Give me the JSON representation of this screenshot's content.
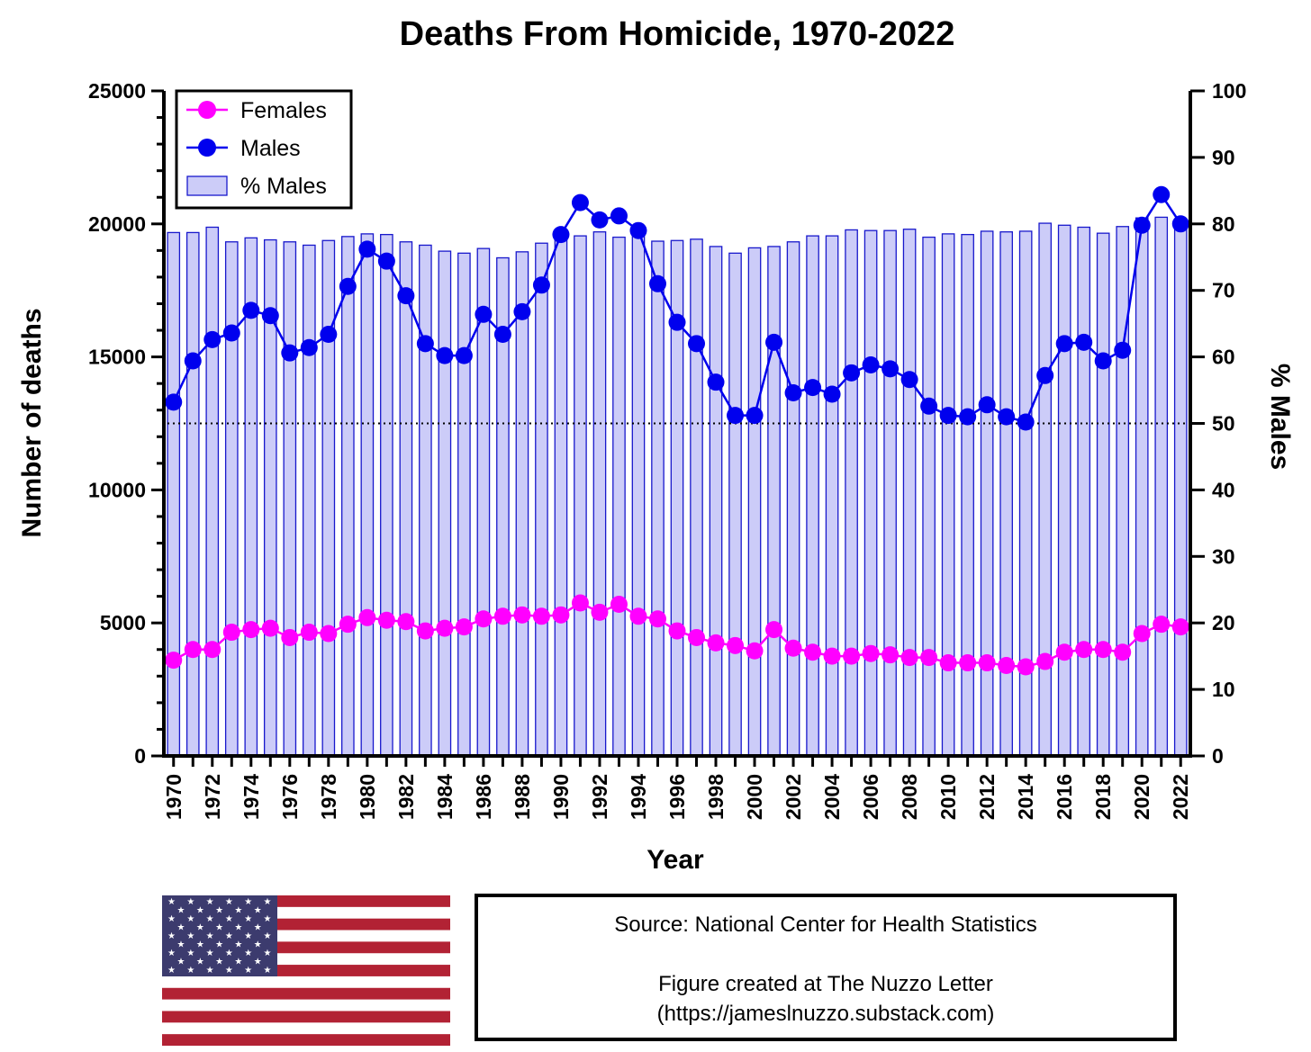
{
  "chart_data": {
    "type": "bar+line",
    "title": "Deaths From Homicide, 1970-2022",
    "xlabel": "Year",
    "ylabel_left": "Number of deaths",
    "ylabel_right": "% Males",
    "ylim_left": [
      0,
      25000
    ],
    "ylim_right": [
      0,
      100
    ],
    "yticks_left": [
      "0",
      "5000",
      "10000",
      "15000",
      "20000",
      "25000"
    ],
    "yticks_right": [
      "0",
      "10",
      "20",
      "30",
      "40",
      "50",
      "60",
      "70",
      "80",
      "90",
      "100"
    ],
    "x": [
      1970,
      1971,
      1972,
      1973,
      1974,
      1975,
      1976,
      1977,
      1978,
      1979,
      1980,
      1981,
      1982,
      1983,
      1984,
      1985,
      1986,
      1987,
      1988,
      1989,
      1990,
      1991,
      1992,
      1993,
      1994,
      1995,
      1996,
      1997,
      1998,
      1999,
      2000,
      2001,
      2002,
      2003,
      2004,
      2005,
      2006,
      2007,
      2008,
      2009,
      2010,
      2011,
      2012,
      2013,
      2014,
      2015,
      2016,
      2017,
      2018,
      2019,
      2020,
      2021,
      2022
    ],
    "xtick_labels": [
      "1970",
      "1972",
      "1974",
      "1976",
      "1978",
      "1980",
      "1982",
      "1984",
      "1986",
      "1988",
      "1990",
      "1992",
      "1994",
      "1996",
      "1998",
      "2000",
      "2002",
      "2004",
      "2006",
      "2008",
      "2010",
      "2012",
      "2014",
      "2016",
      "2018",
      "2020",
      "2022"
    ],
    "reference_line": {
      "axis": "right",
      "value": 50,
      "style": "dotted"
    },
    "legend": {
      "position": "top-left",
      "entries": [
        {
          "label": "Females",
          "color": "#ff00ff",
          "marker": "circle"
        },
        {
          "label": "Males",
          "color": "#0000ee",
          "marker": "circle"
        },
        {
          "label": "% Males",
          "color": "#ccccf8",
          "marker": "bar"
        }
      ]
    },
    "series": [
      {
        "name": "% Males",
        "axis": "right",
        "type": "bar",
        "color": "#ccccf8",
        "edge_color": "#1818cc",
        "values": [
          78.7,
          78.7,
          79.5,
          77.3,
          77.9,
          77.6,
          77.3,
          76.8,
          77.5,
          78.1,
          78.5,
          78.4,
          77.3,
          76.8,
          75.9,
          75.6,
          76.3,
          74.9,
          75.8,
          77.1,
          78.4,
          78.2,
          78.8,
          78.0,
          79.2,
          77.4,
          77.5,
          77.7,
          76.6,
          75.6,
          76.4,
          76.6,
          77.3,
          78.2,
          78.2,
          79.1,
          79.0,
          79.0,
          79.2,
          78.0,
          78.5,
          78.4,
          78.9,
          78.8,
          78.9,
          80.1,
          79.8,
          79.5,
          78.6,
          79.6,
          80.9,
          81.0,
          80.2
        ]
      },
      {
        "name": "Males",
        "axis": "left",
        "type": "line",
        "color": "#0000ee",
        "values": [
          13300,
          14850,
          15650,
          15900,
          16750,
          16550,
          15150,
          15350,
          15850,
          17650,
          19050,
          18600,
          17300,
          15500,
          15050,
          15050,
          16600,
          15850,
          16700,
          17700,
          19600,
          20800,
          20150,
          20300,
          19750,
          17750,
          16300,
          15500,
          14050,
          12800,
          12800,
          15550,
          13650,
          13850,
          13600,
          14400,
          14700,
          14550,
          14150,
          13150,
          12800,
          12750,
          13200,
          12750,
          12550,
          14300,
          15500,
          15550,
          14850,
          15250,
          19950,
          21100,
          20000
        ]
      },
      {
        "name": "Females",
        "axis": "left",
        "type": "line",
        "color": "#ff00ff",
        "values": [
          3600,
          4000,
          4000,
          4650,
          4750,
          4800,
          4450,
          4650,
          4600,
          4950,
          5200,
          5100,
          5050,
          4700,
          4800,
          4850,
          5150,
          5250,
          5300,
          5250,
          5300,
          5750,
          5400,
          5700,
          5250,
          5150,
          4700,
          4450,
          4250,
          4150,
          3950,
          4750,
          4050,
          3900,
          3750,
          3750,
          3850,
          3800,
          3700,
          3700,
          3500,
          3500,
          3500,
          3400,
          3350,
          3550,
          3900,
          4000,
          4000,
          3900,
          4600,
          4950,
          4850
        ]
      }
    ]
  },
  "source": {
    "line1": "Source: National Center for Health Statistics",
    "line2": "Figure created at The Nuzzo Letter",
    "line3": "(https://jameslnuzzo.substack.com)"
  },
  "colors": {
    "flag_red": "#b22234",
    "flag_blue": "#3c3b6e",
    "flag_white": "#ffffff"
  }
}
